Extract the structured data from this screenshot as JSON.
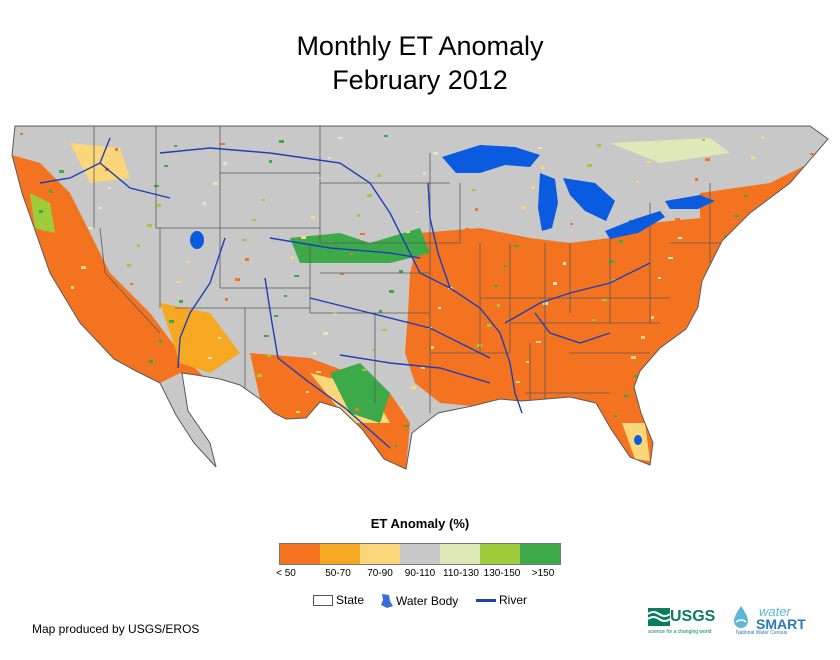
{
  "title": {
    "line1": "Monthly ET Anomaly",
    "line2": "February 2012"
  },
  "legend": {
    "title": "ET Anomaly (%)",
    "classes": [
      {
        "label": "< 50",
        "color": "#f47321"
      },
      {
        "label": "50-70",
        "color": "#f7a823"
      },
      {
        "label": "70-90",
        "color": "#fbd67a"
      },
      {
        "label": "90-110",
        "color": "#c8c8c8"
      },
      {
        "label": "110-130",
        "color": "#dfe9b7"
      },
      {
        "label": "130-150",
        "color": "#9fcc3b"
      },
      {
        "label": ">150",
        "color": "#3caa48"
      }
    ]
  },
  "key": {
    "state": "State",
    "water_body": "Water Body",
    "river": "River"
  },
  "credit": "Map produced by USGS/EROS",
  "logos": {
    "usgs": "USGS",
    "usgs_tagline": "science for a changing world",
    "water": "water",
    "smart": "SMART",
    "smart_sub": "National Water Census"
  },
  "colors": {
    "water": "#0a5be0",
    "river": "#1f3fb5",
    "state_line": "#5a5a5a"
  }
}
